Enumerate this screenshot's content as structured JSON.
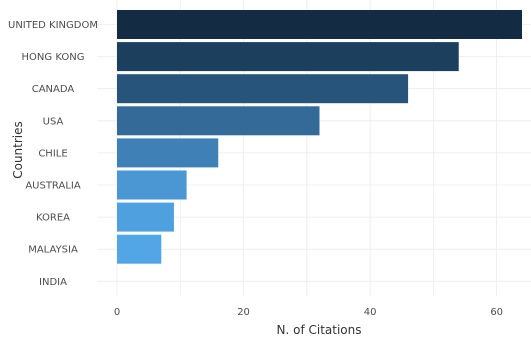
{
  "chart_data": {
    "type": "bar",
    "orientation": "horizontal",
    "categories": [
      "UNITED KINGDOM",
      "HONG KONG",
      "CANADA",
      "USA",
      "CHILE",
      "AUSTRALIA",
      "KOREA",
      "MALAYSIA",
      "INDIA"
    ],
    "values": [
      64,
      54,
      46,
      32,
      16,
      11,
      9,
      7,
      0
    ],
    "xlabel": "N. of Citations",
    "ylabel": "Countries",
    "xlim": [
      0,
      64
    ],
    "xticks": [
      0,
      20,
      40,
      60
    ],
    "grid": true,
    "legend": "none",
    "bar_colors": [
      "#132b43",
      "#1d3f5e",
      "#27547a",
      "#336a98",
      "#3f80b6",
      "#4a97d4",
      "#4fa0de",
      "#53a6e6",
      "#56b1f7"
    ]
  }
}
